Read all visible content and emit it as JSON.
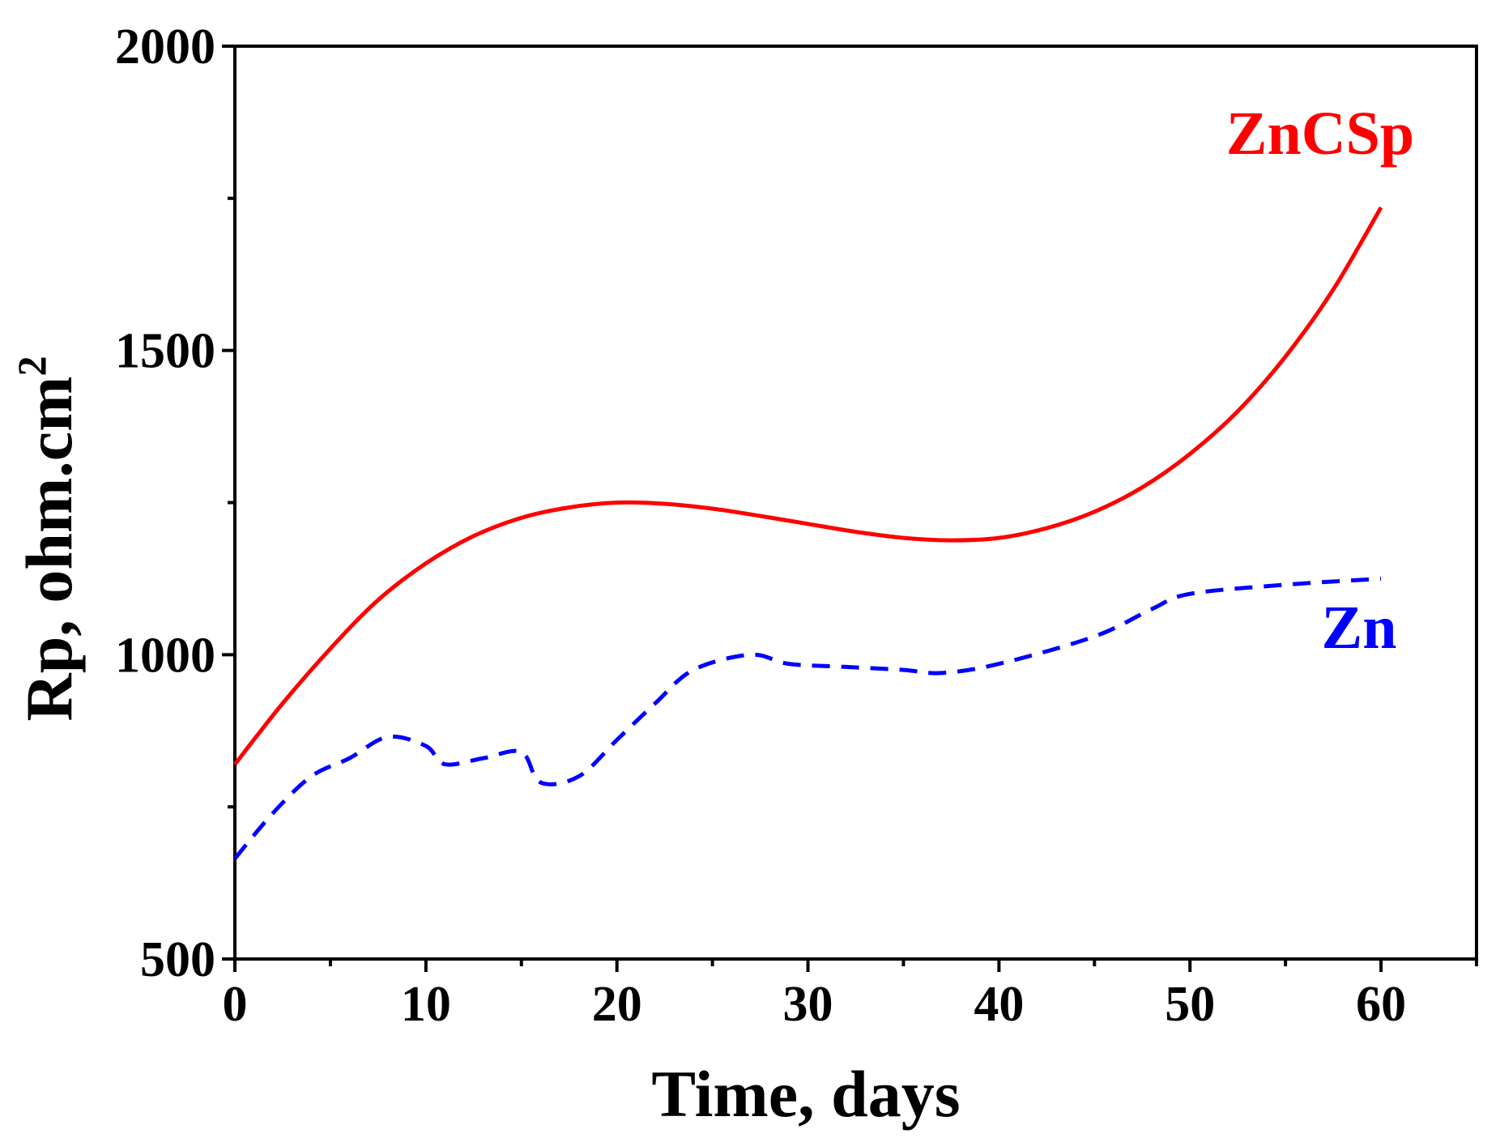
{
  "chart_data": {
    "type": "line",
    "title": "",
    "xlabel": "Time, days",
    "ylabel": "Rp, ohm.cm",
    "ylabel_superscript": "2",
    "xlim": [
      0,
      65
    ],
    "ylim": [
      500,
      2000
    ],
    "xticks": [
      0,
      10,
      20,
      30,
      40,
      50,
      60
    ],
    "yticks": [
      500,
      1000,
      1500,
      2000
    ],
    "x_minor_step": 5,
    "y_minor_step": 250,
    "grid": false,
    "series": [
      {
        "name": "ZnCSp",
        "color": "#ff0000",
        "style": "solid",
        "x": [
          0,
          2.5,
          5,
          7.5,
          10,
          12.5,
          15,
          17.5,
          20,
          22.5,
          25,
          27.5,
          30,
          32.5,
          35,
          37.5,
          40,
          42.5,
          45,
          47.5,
          50,
          52.5,
          55,
          57.5,
          60
        ],
        "y": [
          820,
          920,
          1010,
          1090,
          1150,
          1195,
          1225,
          1242,
          1250,
          1248,
          1240,
          1228,
          1215,
          1202,
          1192,
          1188,
          1192,
          1208,
          1235,
          1275,
          1330,
          1400,
          1490,
          1600,
          1735
        ]
      },
      {
        "name": "Zn",
        "color": "#0000ff",
        "style": "dashed",
        "x": [
          0,
          2,
          4,
          6,
          8,
          10,
          11,
          13,
          15,
          16,
          18,
          20,
          22,
          24,
          27,
          29,
          32,
          35,
          37,
          40,
          45,
          48,
          50,
          55,
          60
        ],
        "y": [
          665,
          740,
          800,
          830,
          865,
          850,
          820,
          830,
          840,
          790,
          800,
          860,
          920,
          975,
          1000,
          985,
          980,
          975,
          970,
          985,
          1030,
          1075,
          1100,
          1115,
          1125
        ]
      }
    ]
  }
}
